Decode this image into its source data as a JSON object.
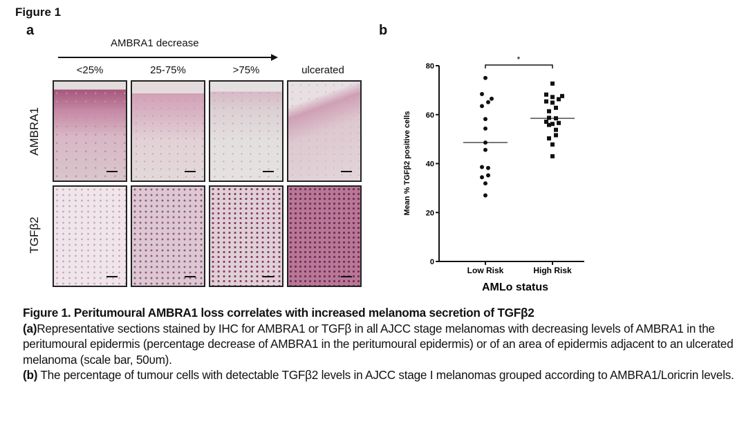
{
  "figure_label": "Figure 1",
  "panel_a": {
    "letter": "a",
    "arrow_label": "AMBRA1 decrease",
    "columns": [
      "<25%",
      "25-75%",
      ">75%",
      "ulcerated"
    ],
    "rows": [
      "AMBRA1",
      "TGFβ2"
    ]
  },
  "panel_b": {
    "letter": "b"
  },
  "chart_data": {
    "type": "scatter",
    "title": "",
    "xlabel": "AMLo status",
    "ylabel": "Mean % TGFβ2  positive cells",
    "categories": [
      "Low Risk",
      "High Risk"
    ],
    "ylim": [
      0,
      80
    ],
    "yticks": [
      0,
      20,
      40,
      60,
      80
    ],
    "grid": false,
    "series": [
      {
        "name": "Low Risk",
        "marker": "circle",
        "median": 48.6,
        "values": [
          75.0,
          68.4,
          66.5,
          65.1,
          63.5,
          58.2,
          54.3,
          48.6,
          45.6,
          38.6,
          38.2,
          35.2,
          34.4,
          31.9,
          27.0
        ]
      },
      {
        "name": "High Risk",
        "marker": "square",
        "median": 58.5,
        "values": [
          72.7,
          68.2,
          67.6,
          67.2,
          66.3,
          65.4,
          64.9,
          62.8,
          61.4,
          58.7,
          58.5,
          57.1,
          56.2,
          55.8,
          56.6,
          53.8,
          51.6,
          50.3,
          47.8,
          43.0
        ]
      }
    ],
    "annotations": [
      {
        "text": "*",
        "between": [
          "Low Risk",
          "High Risk"
        ]
      }
    ]
  },
  "caption": {
    "title": "Figure 1. Peritumoural AMBRA1 loss correlates with increased melanoma secretion of TGFβ2",
    "a_label": "(a)",
    "a_text": "Representative sections stained by IHC for AMBRA1 or TGFβ in all AJCC stage melanomas with decreasing levels of AMBRA1 in the peritumoural epidermis (percentage decrease of AMBRA1 in the peritumoural epidermis) or of an area of epidermis adjacent to an ulcerated melanoma (scale bar, 50υm).",
    "b_label": "(b)",
    "b_text": " The percentage of tumour cells with detectable TGFβ2 levels in AJCC stage I melanomas grouped according to AMBRA1/Loricrin levels."
  }
}
